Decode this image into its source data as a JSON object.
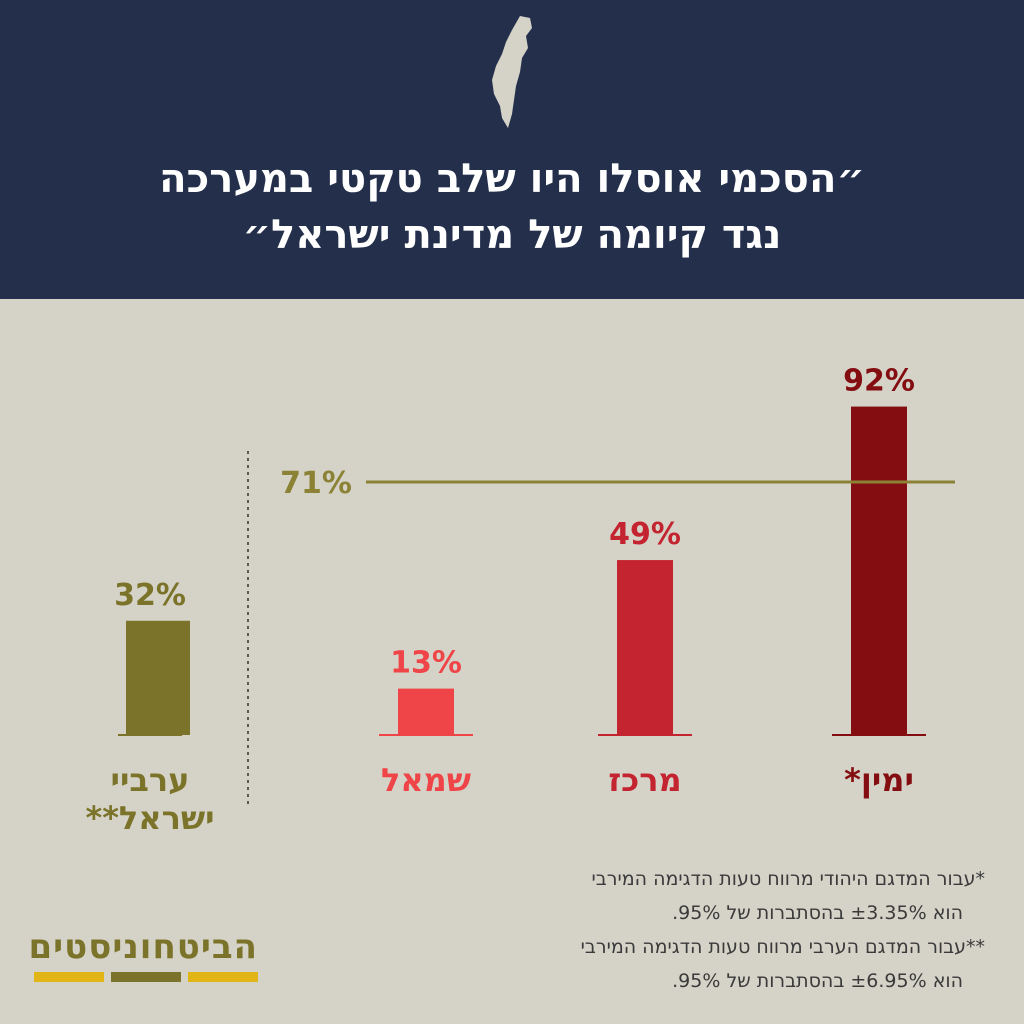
{
  "header": {
    "title_line1": "״הסכמי אוסלו היו שלב טקטי במערכה",
    "title_line2": "נגד קיומה של מדינת ישראל״",
    "icon": "israel-map-icon"
  },
  "chart_data": {
    "type": "bar",
    "categories": [
      "ערביי ישראל**",
      "שמאל",
      "מרכז",
      "ימין*"
    ],
    "values": [
      32,
      13,
      49,
      92
    ],
    "value_labels": [
      "32%",
      "13%",
      "49%",
      "92%"
    ],
    "category_labels": [
      [
        "ערביי",
        "ישראל**"
      ],
      [
        "שמאל"
      ],
      [
        "מרכז"
      ],
      [
        "ימין*"
      ]
    ],
    "reference_line": {
      "value": 71,
      "label": "71%"
    },
    "ylim": [
      0,
      100
    ],
    "colors": [
      "#7b7329",
      "#f04548",
      "#c42330",
      "#830d10"
    ],
    "reference_color": "#8b8235"
  },
  "footnotes": {
    "note1_line1": "*עבור המדגם היהודי מרווח טעות הדגימה המירבי",
    "note1_line2": "הוא ±3.35% בהסתברות של 95%.",
    "note2_line1": "**עבור המדגם הערבי מרווח טעות הדגימה המירבי",
    "note2_line2": "הוא ±6.95% בהסתברות של 95%."
  },
  "logo": {
    "text": "הביטחוניסטים",
    "bar_colors": [
      "#e2b516",
      "#7b7329",
      "#e2b516"
    ]
  }
}
